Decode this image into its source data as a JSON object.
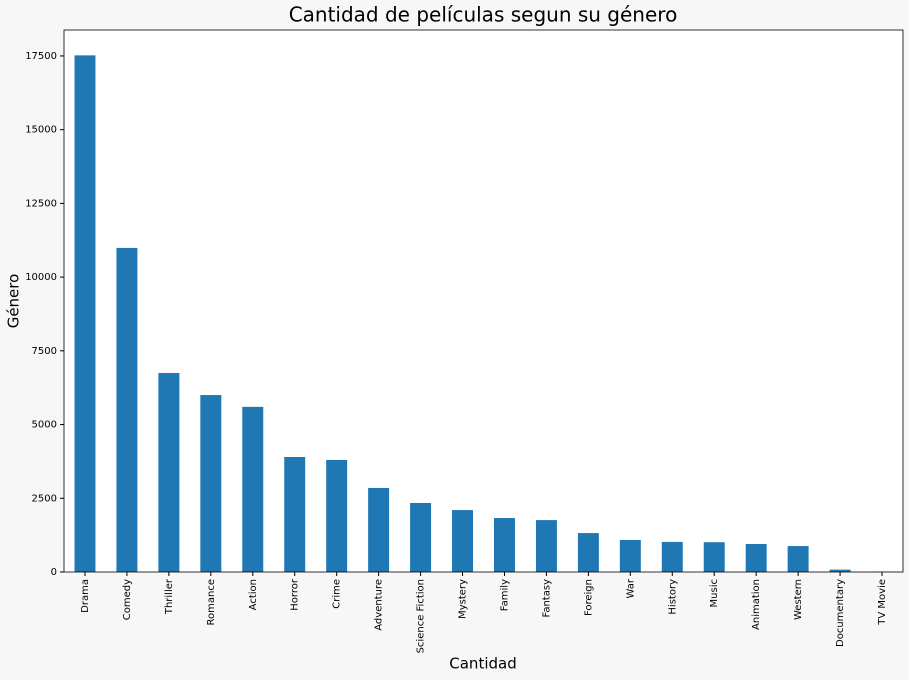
{
  "chart_data": {
    "type": "bar",
    "title": "Cantidad de películas segun su género",
    "x_label": "Cantidad",
    "y_label": "Género",
    "categories": [
      "Drama",
      "Comedy",
      "Thriller",
      "Romance",
      "Action",
      "Horror",
      "Crime",
      "Adventure",
      "Science Fiction",
      "Mystery",
      "Family",
      "Fantasy",
      "Foreign",
      "War",
      "History",
      "Music",
      "Animation",
      "Western",
      "Documentary",
      "TV Movie"
    ],
    "values": [
      17520,
      10990,
      6750,
      6000,
      5600,
      3900,
      3800,
      2850,
      2340,
      2100,
      1830,
      1760,
      1320,
      1085,
      1020,
      1010,
      950,
      880,
      80,
      8
    ],
    "color": "#1f77b4",
    "ylim": [
      0,
      18380
    ],
    "yticks": [
      0,
      2500,
      5000,
      7500,
      10000,
      12500,
      15000,
      17500
    ]
  }
}
